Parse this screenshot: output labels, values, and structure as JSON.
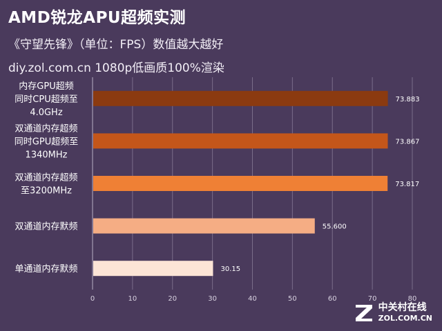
{
  "header": {
    "title": "AMD锐龙APU超频实测",
    "subtitle": "《守望先锋》（单位：FPS）数值越大越好",
    "subtitle2": "diy.zol.com.cn  1080p低画质100%渲染"
  },
  "chart_data": {
    "type": "bar",
    "orientation": "horizontal",
    "categories": [
      [
        "内存GPU超频",
        "同时CPU超频至",
        "4.0GHz"
      ],
      [
        "双通道内存超频",
        "同时GPU超频至",
        "1340MHz"
      ],
      [
        "双通道内存超频",
        "至3200MHz"
      ],
      [
        "双通道内存默频"
      ],
      [
        "单通道内存默频"
      ]
    ],
    "values": [
      73.883,
      73.867,
      73.817,
      55.6,
      30.15
    ],
    "value_labels": [
      "73.883",
      "73.867",
      "73.817",
      "55.600",
      "30.15"
    ],
    "colors": [
      "#8b3a10",
      "#c4561a",
      "#ef8035",
      "#f5ad84",
      "#fce4d6"
    ],
    "xlim": [
      0,
      80
    ],
    "xticks": [
      0,
      10,
      20,
      30,
      40,
      50,
      60,
      70,
      80
    ],
    "grid": true,
    "legend": "none"
  },
  "logo": {
    "cn": "中关村在线",
    "en": "ZOL.COM.CN"
  }
}
